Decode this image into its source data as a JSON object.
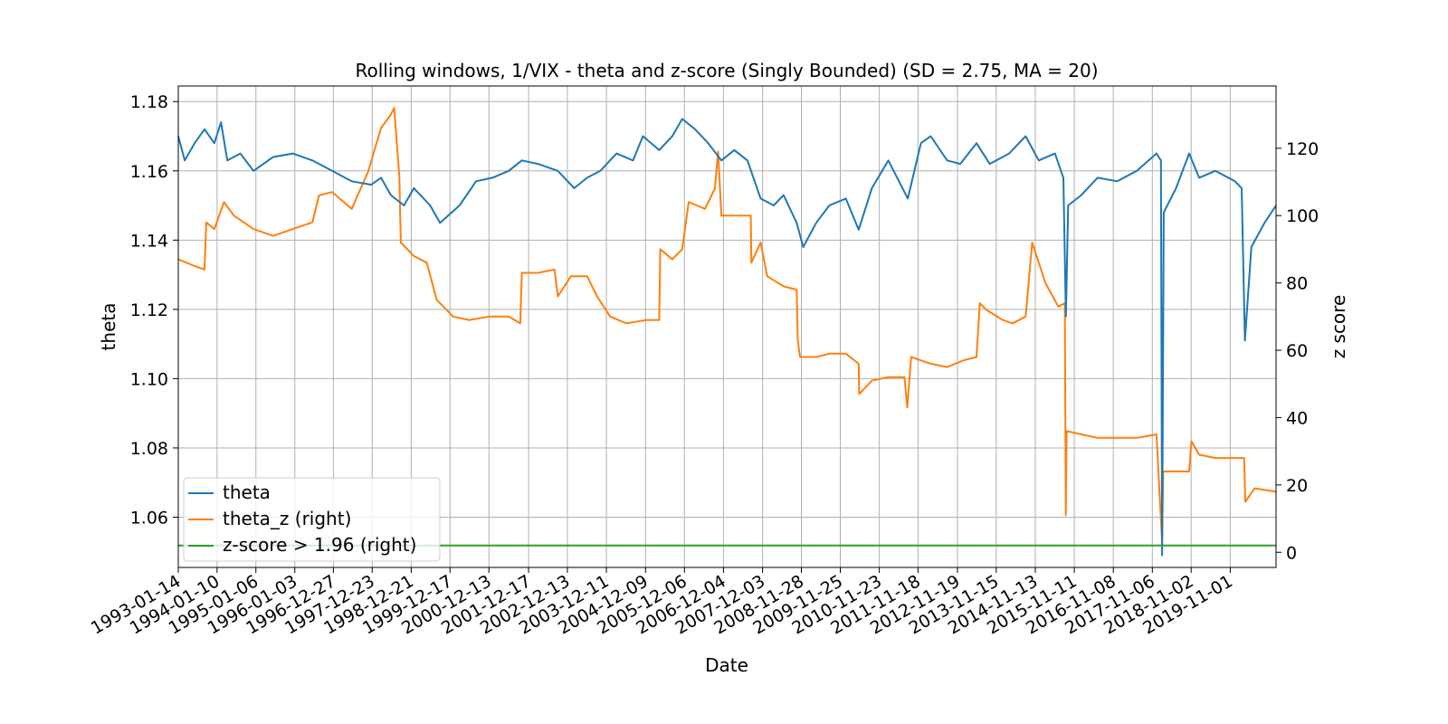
{
  "chart_data": {
    "type": "line",
    "title": "Rolling windows, 1/VIX - theta and z-score (Singly Bounded) (SD = 2.75, MA = 20)",
    "xlabel": "Date",
    "ylabel": "theta",
    "ylabel_right": "z score",
    "xlim": [
      "1993-01-14",
      "2020-12-31"
    ],
    "ylim": [
      1.0455,
      1.1845
    ],
    "ylim_right": [
      -4.5,
      138.5
    ],
    "grid": true,
    "legend_position": "lower-left",
    "x_ticks": [
      "1993-01-14",
      "1994-01-10",
      "1995-01-06",
      "1996-01-03",
      "1996-12-27",
      "1997-12-23",
      "1998-12-21",
      "1999-12-17",
      "2000-12-13",
      "2001-12-17",
      "2002-12-13",
      "2003-12-11",
      "2004-12-09",
      "2005-12-06",
      "2006-12-04",
      "2007-12-03",
      "2008-11-28",
      "2009-11-25",
      "2010-11-23",
      "2011-11-18",
      "2012-11-19",
      "2013-11-15",
      "2014-11-13",
      "2015-11-11",
      "2016-11-08",
      "2017-11-06",
      "2018-11-02",
      "2019-11-01"
    ],
    "y_ticks": [
      "1.06",
      "1.08",
      "1.10",
      "1.12",
      "1.14",
      "1.16",
      "1.18"
    ],
    "y_ticks_right": [
      "0",
      "20",
      "40",
      "60",
      "80",
      "100",
      "120"
    ],
    "series": [
      {
        "name": "theta",
        "axis": "left",
        "color": "#1f77b4",
        "points": [
          [
            "1993-01-14",
            1.17
          ],
          [
            "1993-03-15",
            1.163
          ],
          [
            "1993-06-15",
            1.168
          ],
          [
            "1993-09-15",
            1.172
          ],
          [
            "1993-12-15",
            1.168
          ],
          [
            "1994-02-15",
            1.174
          ],
          [
            "1994-04-15",
            1.163
          ],
          [
            "1994-08-15",
            1.165
          ],
          [
            "1994-12-15",
            1.16
          ],
          [
            "1995-06-15",
            1.164
          ],
          [
            "1995-12-15",
            1.165
          ],
          [
            "1996-06-15",
            1.163
          ],
          [
            "1996-12-15",
            1.16
          ],
          [
            "1997-06-15",
            1.157
          ],
          [
            "1997-12-15",
            1.156
          ],
          [
            "1998-03-15",
            1.158
          ],
          [
            "1998-06-15",
            1.153
          ],
          [
            "1998-10-15",
            1.15
          ],
          [
            "1999-01-15",
            1.155
          ],
          [
            "1999-06-15",
            1.15
          ],
          [
            "1999-09-15",
            1.145
          ],
          [
            "2000-03-15",
            1.15
          ],
          [
            "2000-08-15",
            1.157
          ],
          [
            "2001-01-15",
            1.158
          ],
          [
            "2001-06-15",
            1.16
          ],
          [
            "2001-10-15",
            1.163
          ],
          [
            "2002-03-15",
            1.162
          ],
          [
            "2002-09-15",
            1.16
          ],
          [
            "2003-02-15",
            1.155
          ],
          [
            "2003-06-15",
            1.158
          ],
          [
            "2003-10-15",
            1.16
          ],
          [
            "2004-03-15",
            1.165
          ],
          [
            "2004-08-15",
            1.163
          ],
          [
            "2004-11-15",
            1.17
          ],
          [
            "2005-04-15",
            1.166
          ],
          [
            "2005-08-15",
            1.17
          ],
          [
            "2005-11-15",
            1.175
          ],
          [
            "2006-03-15",
            1.172
          ],
          [
            "2006-07-15",
            1.168
          ],
          [
            "2006-11-15",
            1.163
          ],
          [
            "2007-03-15",
            1.166
          ],
          [
            "2007-07-15",
            1.163
          ],
          [
            "2007-11-15",
            1.152
          ],
          [
            "2008-03-15",
            1.15
          ],
          [
            "2008-06-15",
            1.153
          ],
          [
            "2008-10-15",
            1.145
          ],
          [
            "2008-12-15",
            1.138
          ],
          [
            "2009-04-15",
            1.145
          ],
          [
            "2009-08-15",
            1.15
          ],
          [
            "2010-01-15",
            1.152
          ],
          [
            "2010-05-15",
            1.143
          ],
          [
            "2010-09-15",
            1.155
          ],
          [
            "2011-02-15",
            1.163
          ],
          [
            "2011-08-15",
            1.152
          ],
          [
            "2011-12-15",
            1.168
          ],
          [
            "2012-03-15",
            1.17
          ],
          [
            "2012-08-15",
            1.163
          ],
          [
            "2012-12-15",
            1.162
          ],
          [
            "2013-05-15",
            1.168
          ],
          [
            "2013-09-15",
            1.162
          ],
          [
            "2014-03-15",
            1.165
          ],
          [
            "2014-08-15",
            1.17
          ],
          [
            "2014-12-15",
            1.163
          ],
          [
            "2015-05-15",
            1.165
          ],
          [
            "2015-08-01",
            1.158
          ],
          [
            "2015-08-25",
            1.118
          ],
          [
            "2015-09-15",
            1.15
          ],
          [
            "2016-01-15",
            1.153
          ],
          [
            "2016-06-15",
            1.158
          ],
          [
            "2016-12-15",
            1.157
          ],
          [
            "2017-06-15",
            1.16
          ],
          [
            "2017-12-15",
            1.165
          ],
          [
            "2018-01-25",
            1.163
          ],
          [
            "2018-02-05",
            1.049
          ],
          [
            "2018-02-20",
            1.148
          ],
          [
            "2018-06-15",
            1.155
          ],
          [
            "2018-10-15",
            1.165
          ],
          [
            "2019-01-15",
            1.158
          ],
          [
            "2019-06-15",
            1.16
          ],
          [
            "2019-12-15",
            1.157
          ],
          [
            "2020-02-15",
            1.155
          ],
          [
            "2020-03-16",
            1.111
          ],
          [
            "2020-05-15",
            1.138
          ],
          [
            "2020-09-15",
            1.145
          ],
          [
            "2020-12-31",
            1.15
          ]
        ]
      },
      {
        "name": "theta_z (right)",
        "axis": "right",
        "color": "#ff7f0e",
        "points": [
          [
            "1993-01-14",
            87
          ],
          [
            "1993-06-15",
            85
          ],
          [
            "1993-09-15",
            84
          ],
          [
            "1993-10-01",
            98
          ],
          [
            "1993-12-15",
            96
          ],
          [
            "1994-03-15",
            104
          ],
          [
            "1994-06-15",
            100
          ],
          [
            "1994-12-15",
            96
          ],
          [
            "1995-06-15",
            94
          ],
          [
            "1995-12-15",
            96
          ],
          [
            "1996-06-15",
            98
          ],
          [
            "1996-08-15",
            106
          ],
          [
            "1996-12-15",
            107
          ],
          [
            "1997-06-15",
            102
          ],
          [
            "1997-11-15",
            113
          ],
          [
            "1998-03-15",
            126
          ],
          [
            "1998-06-15",
            130
          ],
          [
            "1998-07-15",
            132
          ],
          [
            "1998-09-01",
            112
          ],
          [
            "1998-09-15",
            92
          ],
          [
            "1999-01-15",
            88
          ],
          [
            "1999-05-15",
            86
          ],
          [
            "1999-08-15",
            75
          ],
          [
            "2000-01-15",
            70
          ],
          [
            "2000-06-15",
            69
          ],
          [
            "2000-12-15",
            70
          ],
          [
            "2001-06-15",
            70
          ],
          [
            "2001-10-01",
            68
          ],
          [
            "2001-10-15",
            83
          ],
          [
            "2002-03-15",
            83
          ],
          [
            "2002-08-15",
            84
          ],
          [
            "2002-09-15",
            76
          ],
          [
            "2003-01-15",
            82
          ],
          [
            "2003-06-15",
            82
          ],
          [
            "2003-09-15",
            76
          ],
          [
            "2004-01-15",
            70
          ],
          [
            "2004-06-15",
            68
          ],
          [
            "2004-12-15",
            69
          ],
          [
            "2005-04-15",
            69
          ],
          [
            "2005-04-25",
            90
          ],
          [
            "2005-08-15",
            87
          ],
          [
            "2005-11-15",
            90
          ],
          [
            "2006-01-15",
            104
          ],
          [
            "2006-06-15",
            102
          ],
          [
            "2006-09-15",
            108
          ],
          [
            "2006-10-15",
            119
          ],
          [
            "2006-11-15",
            100
          ],
          [
            "2007-03-15",
            100
          ],
          [
            "2007-08-15",
            100
          ],
          [
            "2007-08-20",
            86
          ],
          [
            "2007-11-15",
            92
          ],
          [
            "2008-01-15",
            82
          ],
          [
            "2008-06-15",
            79
          ],
          [
            "2008-10-15",
            78
          ],
          [
            "2008-10-25",
            63
          ],
          [
            "2008-11-15",
            58
          ],
          [
            "2009-04-15",
            58
          ],
          [
            "2009-08-15",
            59
          ],
          [
            "2010-01-15",
            59
          ],
          [
            "2010-05-15",
            56
          ],
          [
            "2010-05-20",
            47
          ],
          [
            "2010-09-15",
            51
          ],
          [
            "2011-02-15",
            52
          ],
          [
            "2011-07-15",
            52
          ],
          [
            "2011-08-10",
            43
          ],
          [
            "2011-09-15",
            58
          ],
          [
            "2012-03-15",
            56
          ],
          [
            "2012-08-15",
            55
          ],
          [
            "2013-01-15",
            57
          ],
          [
            "2013-05-15",
            58
          ],
          [
            "2013-06-15",
            74
          ],
          [
            "2013-08-15",
            72
          ],
          [
            "2014-01-15",
            69
          ],
          [
            "2014-04-15",
            68
          ],
          [
            "2014-08-15",
            70
          ],
          [
            "2014-10-15",
            92
          ],
          [
            "2015-02-15",
            80
          ],
          [
            "2015-06-15",
            73
          ],
          [
            "2015-08-15",
            74
          ],
          [
            "2015-08-24",
            11
          ],
          [
            "2015-09-01",
            36
          ],
          [
            "2016-01-15",
            35
          ],
          [
            "2016-06-15",
            34
          ],
          [
            "2016-12-15",
            34
          ],
          [
            "2017-06-15",
            34
          ],
          [
            "2017-12-15",
            35
          ],
          [
            "2018-02-05",
            3
          ],
          [
            "2018-02-15",
            24
          ],
          [
            "2018-06-15",
            24
          ],
          [
            "2018-10-15",
            24
          ],
          [
            "2018-11-05",
            33
          ],
          [
            "2019-01-15",
            29
          ],
          [
            "2019-06-15",
            28
          ],
          [
            "2019-12-15",
            28
          ],
          [
            "2020-03-10",
            28
          ],
          [
            "2020-03-20",
            15
          ],
          [
            "2020-06-15",
            19
          ],
          [
            "2020-12-31",
            18
          ]
        ]
      },
      {
        "name": "z-score > 1.96 (right)",
        "axis": "right",
        "color": "#2ca02c",
        "points": [
          [
            "1993-01-14",
            2
          ],
          [
            "2020-12-31",
            2
          ]
        ]
      }
    ]
  }
}
